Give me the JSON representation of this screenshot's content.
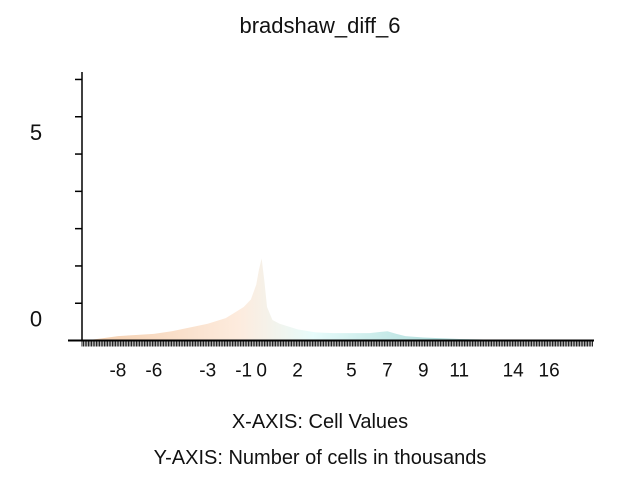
{
  "chart_data": {
    "type": "area",
    "title": "bradshaw_diff_6",
    "xlabel": "X-AXIS: Cell Values",
    "ylabel": "Y-AXIS: Number of cells in thousands",
    "xlim": [
      -10,
      18.5
    ],
    "ylim": [
      -0.2,
      7.2
    ],
    "x_ticks": [
      -8,
      -6,
      -3,
      -1,
      0,
      2,
      5,
      7,
      9,
      11,
      14,
      16
    ],
    "x_tick_labels": [
      "-8",
      "-6",
      "-3",
      "-1",
      "0",
      "2",
      "5",
      "7",
      "9",
      "11",
      "14",
      "16"
    ],
    "y_major_ticks": [
      0,
      5
    ],
    "y_tick_labels": [
      {
        "value": 0,
        "label": "0"
      },
      {
        "value": 5,
        "label": "5"
      }
    ],
    "grid": false,
    "legend": "none",
    "colors": {
      "negative_start": "#f2c6a0",
      "negative_end": "#fde8d8",
      "center": "#e3fbfb",
      "positive_start": "#c8ecea",
      "positive_end": "#63b3b3",
      "axis": "#000000"
    },
    "series": [
      {
        "x": [
          -9.5,
          -9.0,
          -8.0,
          -7.0,
          -6.0,
          -5.0,
          -4.0,
          -3.0,
          -2.0,
          -1.5,
          -1.0,
          -0.6,
          -0.3,
          -0.15,
          0.0,
          0.15,
          0.3,
          0.6,
          1.0,
          2.0,
          3.0,
          4.0,
          5.0,
          6.0,
          7.0,
          7.5,
          8.0,
          9.0,
          10.0,
          11.0,
          12.0,
          13.0,
          14.0,
          15.0,
          16.0,
          17.0,
          18.0
        ],
        "y": [
          0.02,
          0.05,
          0.12,
          0.15,
          0.18,
          0.25,
          0.35,
          0.45,
          0.6,
          0.75,
          0.9,
          1.1,
          1.5,
          1.9,
          2.2,
          1.6,
          0.9,
          0.55,
          0.45,
          0.3,
          0.22,
          0.2,
          0.2,
          0.2,
          0.25,
          0.18,
          0.12,
          0.08,
          0.06,
          0.04,
          0.03,
          0.02,
          0.02,
          0.02,
          0.02,
          0.01,
          0.01
        ]
      }
    ]
  }
}
